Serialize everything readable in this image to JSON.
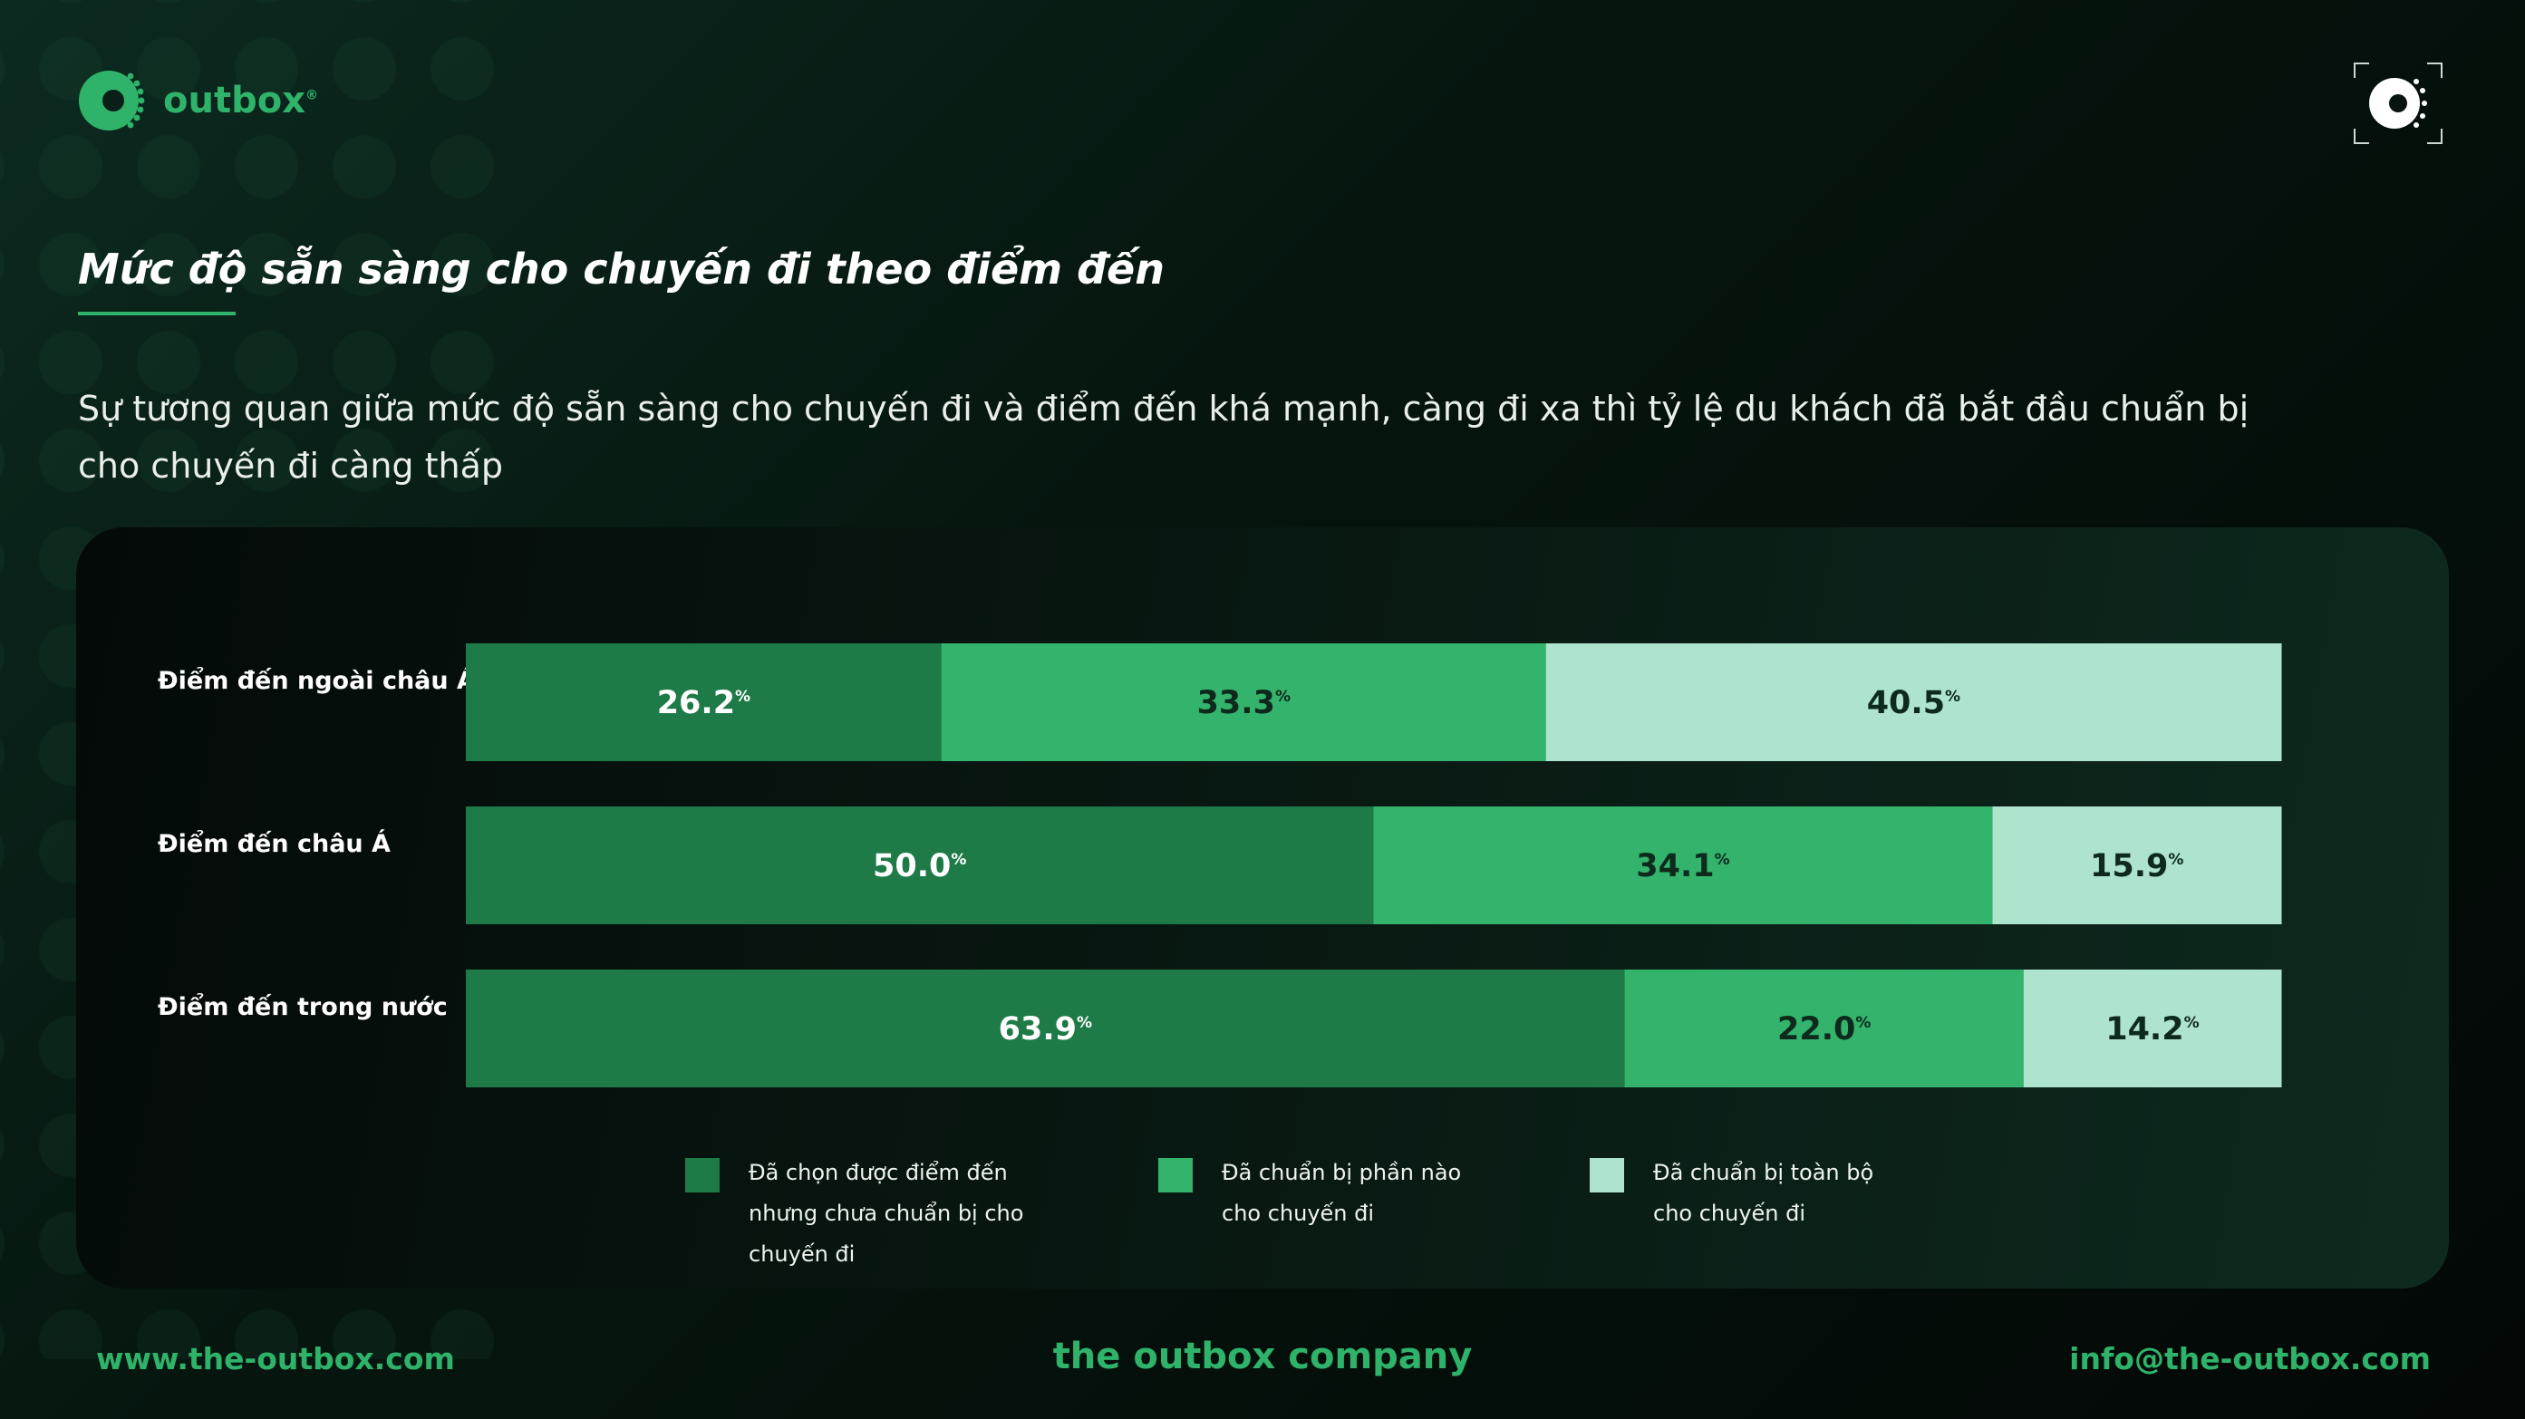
{
  "brand": {
    "name": "outbox",
    "mark": "®"
  },
  "title": "Mức độ sẵn sàng cho chuyến đi theo điểm đến",
  "subtitle": "Sự tương quan giữa mức độ sẵn sàng cho chuyến đi và điểm đến khá mạnh, càng đi xa thì tỷ lệ du khách đã bắt đầu chuẩn bị cho chuyến đi càng thấp",
  "colors": {
    "dark_green": "#1e7b47",
    "mid_green": "#33b36c",
    "light_green": "#aee3cd",
    "accent": "#2fb36a"
  },
  "chart_data": {
    "type": "bar",
    "orientation": "horizontal",
    "stacked": true,
    "unit": "%",
    "xlim": [
      0,
      100
    ],
    "categories": [
      "Điểm đến ngoài châu Á",
      "Điểm đến châu Á",
      "Điểm đến trong nước"
    ],
    "series": [
      {
        "name": "Đã chọn được điểm đến nhưng chưa chuẩn bị cho chuyến đi",
        "color": "#1e7b47",
        "values": [
          26.2,
          50.0,
          63.9
        ],
        "labels": [
          "26.2",
          "50.0",
          "63.9"
        ]
      },
      {
        "name": "Đã chuẩn bị phần nào cho chuyến đi",
        "color": "#33b36c",
        "values": [
          33.3,
          34.1,
          22.0
        ],
        "labels": [
          "33.3",
          "34.1",
          "22.0"
        ]
      },
      {
        "name": "Đã chuẩn bị toàn bộ cho chuyến đi",
        "color": "#aee3cd",
        "values": [
          40.5,
          15.9,
          14.2
        ],
        "labels": [
          "40.5",
          "15.9",
          "14.2"
        ]
      }
    ],
    "grid": false,
    "legend": "bottom"
  },
  "footer": {
    "website": "www.the-outbox.com",
    "company": "the outbox company",
    "email": "info@the-outbox.com"
  }
}
